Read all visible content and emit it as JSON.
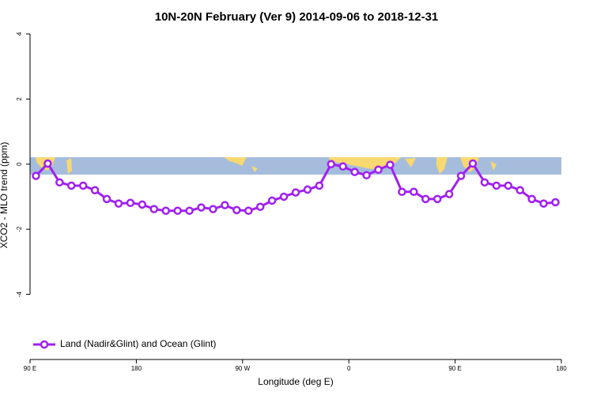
{
  "chart_data": {
    "type": "line",
    "title": "10N-20N February (Ver 9)   2014-09-06 to 2018-12-31",
    "xlabel": "Longitude (deg E)",
    "ylabel": "XCO2 - MLO trend (ppm)",
    "x": [
      95,
      105,
      115,
      125,
      135,
      145,
      155,
      165,
      175,
      185,
      195,
      205,
      215,
      225,
      235,
      245,
      255,
      265,
      275,
      285,
      295,
      305,
      315,
      325,
      335,
      345,
      355,
      365,
      375,
      385,
      395,
      405,
      415,
      425,
      435,
      445,
      455,
      465,
      475,
      485,
      495,
      505,
      515,
      525,
      535
    ],
    "series": [
      {
        "name": "Land (Nadir&Glint) and Ocean (Glint)",
        "color": "#a020f0",
        "values": [
          -0.36,
          0.02,
          -0.56,
          -0.66,
          -0.66,
          -0.8,
          -1.07,
          -1.21,
          -1.19,
          -1.24,
          -1.38,
          -1.43,
          -1.43,
          -1.43,
          -1.33,
          -1.38,
          -1.26,
          -1.41,
          -1.43,
          -1.31,
          -1.12,
          -1.0,
          -0.87,
          -0.78,
          -0.66,
          0.0,
          -0.07,
          -0.24,
          -0.34,
          -0.17,
          -0.02,
          -0.85,
          -0.85,
          -1.07,
          -1.07,
          -0.92,
          -0.36,
          0.02,
          -0.56,
          -0.66,
          -0.66,
          -0.8,
          -1.07,
          -1.21,
          -1.17
        ]
      }
    ],
    "xlim": [
      90,
      540
    ],
    "xticks": [
      {
        "value": 90,
        "label": "90 E"
      },
      180,
      {
        "value": 270,
        "label": "90 W"
      },
      {
        "value": 360,
        "label": "0"
      },
      {
        "value": 450,
        "label": "90 E"
      },
      {
        "value": 540,
        "label": "180"
      }
    ],
    "ylim": [
      -6,
      4.12
    ],
    "yticks": [
      -4,
      -2,
      0,
      2,
      4
    ],
    "legend": "bottom-left"
  }
}
